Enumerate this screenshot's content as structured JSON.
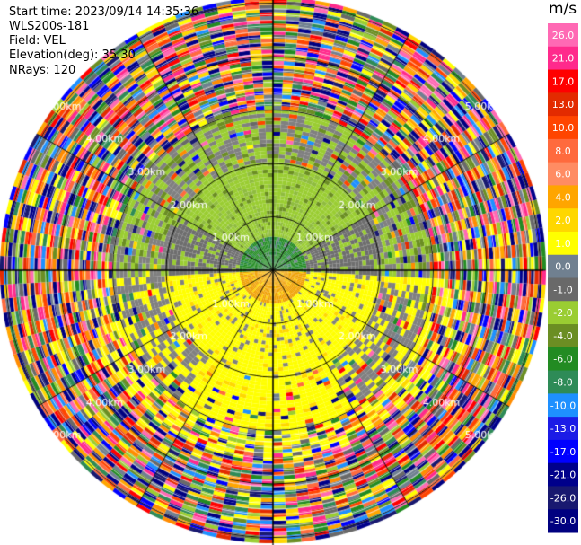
{
  "header": {
    "start_time": "Start time: 2023/09/14 14:35:36",
    "instrument": "WLS200s-181",
    "field": "Field: VEL",
    "elevation": "Elevation(deg): 35.30",
    "nrays": "NRays: 120"
  },
  "colorbar": {
    "unit": "m/s",
    "ticks": [
      "26.0",
      "21.0",
      "17.0",
      "13.0",
      "10.0",
      "8.0",
      "6.0",
      "4.0",
      "2.0",
      "1.0",
      "0.0",
      "-1.0",
      "-2.0",
      "-4.0",
      "-6.0",
      "-8.0",
      "-10.0",
      "-13.0",
      "-17.0",
      "-21.0",
      "-26.0",
      "-30.0"
    ],
    "colors": [
      "#ff69b4",
      "#ff2a8c",
      "#ff0000",
      "#e32b00",
      "#ff4500",
      "#ff6a3d",
      "#ff8c63",
      "#ffa500",
      "#ffd700",
      "#ffff00",
      "#708090",
      "#696969",
      "#9acd32",
      "#6b8e23",
      "#228b22",
      "#2e8b57",
      "#1e90ff",
      "#1c1ce6",
      "#0000ff",
      "#00008b",
      "#191970",
      "#000080"
    ]
  },
  "chart_data": {
    "type": "polar",
    "field": "VEL",
    "nrays": 120,
    "range_rings_km": [
      1.0,
      2.0,
      3.0,
      4.0,
      5.0
    ],
    "ring_labels": [
      "1.00km",
      "2.00km",
      "3.00km",
      "4.00km",
      "5.00km"
    ],
    "colormap_range": [
      -30.0,
      26.0
    ],
    "zones": [
      {
        "range_km": [
          0,
          0.6
        ],
        "north_half": "green",
        "south_half": "orange"
      },
      {
        "range_km": [
          0.6,
          2.0
        ],
        "north_half": "olive-green / gray",
        "south_half": "yellow / gray"
      },
      {
        "range_km": [
          2.0,
          3.0
        ],
        "north_half": "gray / olive",
        "south_half": "yellow / gray"
      },
      {
        "range_km": [
          3.0,
          5.1
        ],
        "all": "multicolor noise"
      }
    ]
  }
}
